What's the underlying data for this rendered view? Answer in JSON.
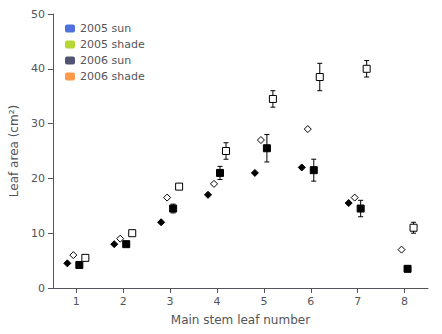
{
  "chart_data": {
    "type": "scatter",
    "xlabel": "Main stem leaf number",
    "ylabel": "Leaf area (cm²)",
    "x": [
      1,
      2,
      3,
      4,
      5,
      6,
      7,
      8
    ],
    "series": [
      {
        "name": "2005 sun",
        "color": "#000000",
        "marker": "diamond",
        "values": [
          4.5,
          8.0,
          12.0,
          17.0,
          21.0,
          22.0,
          15.5,
          null
        ],
        "yerr": [
          null,
          null,
          null,
          null,
          null,
          null,
          null,
          null
        ]
      },
      {
        "name": "2005 shade",
        "color": "#000000",
        "marker": "diamond-open",
        "values": [
          6.0,
          9.0,
          16.5,
          19.0,
          27.0,
          29.0,
          16.5,
          7.0
        ],
        "yerr": [
          null,
          null,
          null,
          null,
          null,
          null,
          null,
          null
        ]
      },
      {
        "name": "2006 sun",
        "color": "#000000",
        "marker": "square",
        "values": [
          4.2,
          8.0,
          14.5,
          21.0,
          25.5,
          21.5,
          14.5,
          3.5
        ],
        "yerr": [
          null,
          null,
          0.8,
          1.2,
          2.5,
          2.0,
          1.5,
          0.5
        ]
      },
      {
        "name": "2006 shade",
        "color": "#000000",
        "marker": "square-open",
        "values": [
          5.5,
          10.0,
          18.5,
          25.0,
          34.5,
          38.5,
          40.0,
          11.0
        ],
        "yerr": [
          null,
          null,
          null,
          1.5,
          1.5,
          2.5,
          1.5,
          1.0
        ]
      }
    ],
    "xlim": [
      0.5,
      8.5
    ],
    "xticks": [
      1,
      2,
      3,
      4,
      5,
      6,
      7,
      8
    ],
    "ylim": [
      0,
      50
    ],
    "yticks": [
      0,
      10,
      20,
      30,
      40,
      50
    ],
    "grid": false,
    "legend": "upper left"
  }
}
